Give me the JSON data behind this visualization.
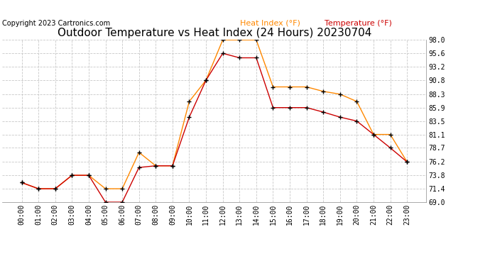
{
  "title": "Outdoor Temperature vs Heat Index (24 Hours) 20230704",
  "copyright": "Copyright 2023 Cartronics.com",
  "legend_heat": "Heat Index (°F)",
  "legend_temp": "Temperature (°F)",
  "hours": [
    "00:00",
    "01:00",
    "02:00",
    "03:00",
    "04:00",
    "05:00",
    "06:00",
    "07:00",
    "08:00",
    "09:00",
    "10:00",
    "11:00",
    "12:00",
    "13:00",
    "14:00",
    "15:00",
    "16:00",
    "17:00",
    "18:00",
    "19:00",
    "20:00",
    "21:00",
    "22:00",
    "23:00"
  ],
  "temperature": [
    72.5,
    71.4,
    71.4,
    73.8,
    73.8,
    69.0,
    69.0,
    75.2,
    75.5,
    75.5,
    84.2,
    90.8,
    95.6,
    94.8,
    94.8,
    85.9,
    85.9,
    85.9,
    85.1,
    84.2,
    83.5,
    81.1,
    78.7,
    76.2
  ],
  "heat_index": [
    72.5,
    71.4,
    71.4,
    73.8,
    73.8,
    71.4,
    71.4,
    77.9,
    75.5,
    75.5,
    87.0,
    90.8,
    98.0,
    98.0,
    98.0,
    89.6,
    89.6,
    89.6,
    88.8,
    88.3,
    87.0,
    81.1,
    81.1,
    76.2
  ],
  "temp_color": "#cc0000",
  "heat_color": "#ff8800",
  "marker": "+",
  "marker_color": "#000000",
  "ylim_min": 69.0,
  "ylim_max": 98.0,
  "yticks": [
    69.0,
    71.4,
    73.8,
    76.2,
    78.7,
    81.1,
    83.5,
    85.9,
    88.3,
    90.8,
    93.2,
    95.6,
    98.0
  ],
  "background_color": "#ffffff",
  "grid_color": "#c8c8c8",
  "title_fontsize": 11,
  "copyright_fontsize": 7,
  "legend_fontsize": 8,
  "tick_fontsize": 7
}
